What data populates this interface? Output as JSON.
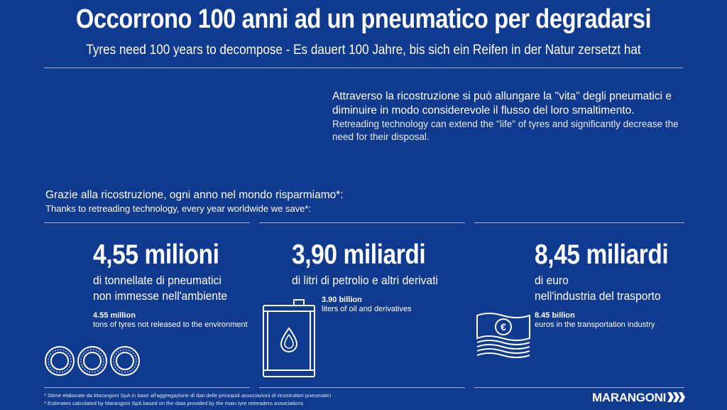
{
  "header": {
    "title": "Occorrono 100 anni ad un pneumatico per degradarsi",
    "subtitle": "Tyres need 100 years to decompose - Es dauert 100 Jahre, bis sich ein Reifen in der Natur zersetzt hat"
  },
  "intro": {
    "it": "Attraverso la ricostruzione si può allungare la \"vita\" degli pneumatici e diminuire in modo considerevole il flusso del loro smaltimento.",
    "en": "Retreading technology can extend the \"life\" of tyres and significantly decrease the need for their disposal."
  },
  "savings": {
    "heading_it": "Grazie alla ricostruzione, ogni anno nel mondo risparmiamo*:",
    "heading_en": "Thanks to retreading technology, every year worldwide we save*:"
  },
  "stats": [
    {
      "big": "4,55 milioni",
      "desc_line1": "di tonnellate di pneumatici",
      "desc_line2": "non immesse nell'ambiente",
      "en_value": "4.55 million",
      "en_desc": "tons of tyres not released to the environment",
      "icon": "tyres-icon"
    },
    {
      "big": "3,90 miliardi",
      "desc_line1": "di litri di petrolio e altri derivati",
      "en_value": "3.90 billion",
      "en_desc": "liters of oil and derivatives",
      "icon": "oil-barrel-icon"
    },
    {
      "big": "8,45 miliardi",
      "desc_line1": "di euro",
      "desc_line2": "nell'industria del trasporto",
      "en_value": "8.45 billion",
      "en_desc": "euros in the transportation industry",
      "icon": "euro-banknotes-icon"
    }
  ],
  "footnotes": {
    "it": "* Stime elaborate da Marangoni SpA in base all'aggregazione di dati delle principali associazioni di ricostruttori pneumatici",
    "en": "* Estimates calculated by Marangoni SpA based on the data provided by the main tyre retreaders associations"
  },
  "brand": {
    "name": "MARANGONI"
  },
  "colors": {
    "background": "#0f3a8e",
    "text": "#ffffff",
    "rule": "#9fb1d6"
  }
}
